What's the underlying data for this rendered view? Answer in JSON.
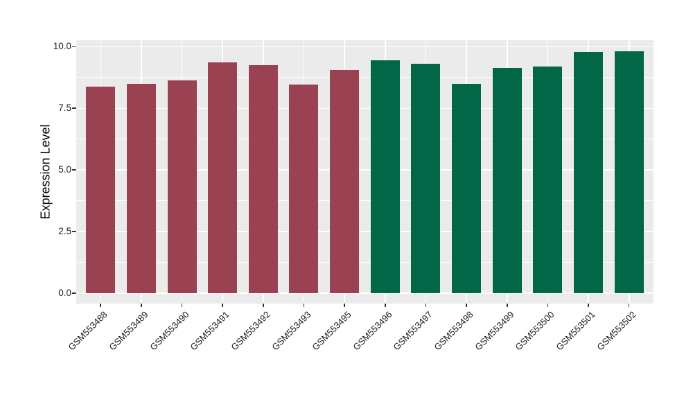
{
  "chart_data": {
    "type": "bar",
    "title": "",
    "xlabel": "",
    "ylabel": "Expression Level",
    "ylim": [
      0,
      10.26
    ],
    "yticks": [
      0.0,
      2.5,
      5.0,
      7.5,
      10.0
    ],
    "ytick_labels": [
      "0.0",
      "2.5",
      "5.0",
      "7.5",
      "10.0"
    ],
    "yminor": [
      1.25,
      3.75,
      6.25,
      8.75
    ],
    "grid": "on",
    "legend": "none",
    "categories": [
      "GSM553488",
      "GSM553489",
      "GSM553490",
      "GSM553491",
      "GSM553492",
      "GSM553493",
      "GSM553495",
      "GSM553496",
      "GSM553497",
      "GSM553498",
      "GSM553499",
      "GSM553500",
      "GSM553501",
      "GSM553502"
    ],
    "values": [
      8.39,
      8.5,
      8.63,
      9.37,
      9.26,
      8.45,
      9.04,
      9.45,
      9.31,
      8.49,
      9.14,
      9.19,
      9.77,
      9.82
    ],
    "bar_groups": [
      "group1",
      "group1",
      "group1",
      "group1",
      "group1",
      "group1",
      "group1",
      "group2",
      "group2",
      "group2",
      "group2",
      "group2",
      "group2",
      "group2"
    ],
    "palette": {
      "group1": "#9A4252",
      "group2": "#026747"
    },
    "style": {
      "panel_bg": "#EBEBEB",
      "grid_color": "#FFFFFF",
      "axis_text_color": "#1A1A1A",
      "tick_color": "#333333",
      "figure_bg": "#FFFFFF"
    }
  }
}
